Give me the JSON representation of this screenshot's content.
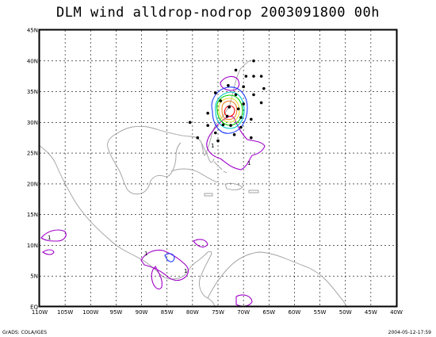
{
  "title": "DLM wind alldrop-nodrop 2003091800 00h",
  "footer": {
    "left": "GrADS: COLA/IGES",
    "right": "2004-05-12-17:59"
  },
  "axes": {
    "x_ticks": [
      "110W",
      "105W",
      "100W",
      "95W",
      "90W",
      "85W",
      "80W",
      "75W",
      "70W",
      "65W",
      "60W",
      "55W",
      "50W",
      "45W",
      "40W"
    ],
    "y_ticks": [
      "EQ",
      "5N",
      "10N",
      "15N",
      "20N",
      "25N",
      "30N",
      "35N",
      "40N",
      "45N"
    ],
    "lon_range": [
      -110,
      -40
    ],
    "lat_range": [
      0,
      45
    ],
    "grid": true
  },
  "contour_colors": {
    "coast": "#a0a0a0",
    "purple": "#a000c8",
    "blue": "#1e3cff",
    "cyan": "#00c8c8",
    "green": "#00d200",
    "yellow": "#e6dc32",
    "orange": "#f08228",
    "red": "#ff0000"
  },
  "contour_label": "1",
  "dropsondes": [
    [
      -68.0,
      40.0
    ],
    [
      -71.5,
      38.5
    ],
    [
      -69.5,
      37.5
    ],
    [
      -68.0,
      37.5
    ],
    [
      -66.5,
      37.5
    ],
    [
      -73.0,
      36.0
    ],
    [
      -70.0,
      35.8
    ],
    [
      -66.0,
      35.5
    ],
    [
      -75.5,
      34.8
    ],
    [
      -71.5,
      34.5
    ],
    [
      -68.0,
      34.5
    ],
    [
      -74.5,
      33.5
    ],
    [
      -70.0,
      33.0
    ],
    [
      -66.5,
      33.2
    ],
    [
      -72.8,
      32.5
    ],
    [
      -71.0,
      32.2
    ],
    [
      -77.0,
      31.5
    ],
    [
      -73.2,
      31.0
    ],
    [
      -70.5,
      30.8
    ],
    [
      -68.5,
      30.5
    ],
    [
      -80.5,
      30.0
    ],
    [
      -77.0,
      29.5
    ],
    [
      -74.0,
      29.6
    ],
    [
      -72.5,
      29.5
    ],
    [
      -70.5,
      29.2
    ],
    [
      -75.5,
      28.3
    ],
    [
      -71.8,
      28.0
    ],
    [
      -68.5,
      27.5
    ],
    [
      -79.0,
      27.5
    ],
    [
      -75.0,
      27.0
    ]
  ]
}
